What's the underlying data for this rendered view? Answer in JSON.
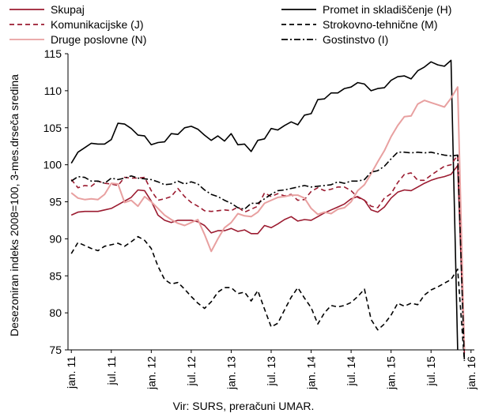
{
  "chart_data": {
    "type": "line",
    "ylabel": "Desezoniran indeks 2008=100, 3-mes.drseča sredina",
    "xlabel": "",
    "ylim": [
      75,
      115
    ],
    "yticks": [
      75,
      80,
      85,
      90,
      95,
      100,
      105,
      110,
      115
    ],
    "grid": false,
    "legend_position": "top",
    "source": "Vir:  SURS, preračuni UMAR.",
    "x": [
      "2011-01",
      "2011-02",
      "2011-03",
      "2011-04",
      "2011-05",
      "2011-06",
      "2011-07",
      "2011-08",
      "2011-09",
      "2011-10",
      "2011-11",
      "2011-12",
      "2012-01",
      "2012-02",
      "2012-03",
      "2012-04",
      "2012-05",
      "2012-06",
      "2012-07",
      "2012-08",
      "2012-09",
      "2012-10",
      "2012-11",
      "2012-12",
      "2013-01",
      "2013-02",
      "2013-03",
      "2013-04",
      "2013-05",
      "2013-06",
      "2013-07",
      "2013-08",
      "2013-09",
      "2013-10",
      "2013-11",
      "2013-12",
      "2014-01",
      "2014-02",
      "2014-03",
      "2014-04",
      "2014-05",
      "2014-06",
      "2014-07",
      "2014-08",
      "2014-09",
      "2014-10",
      "2014-11",
      "2014-12",
      "2015-01",
      "2015-02",
      "2015-03",
      "2015-04",
      "2015-05",
      "2015-06",
      "2015-07",
      "2015-08",
      "2015-09",
      "2015-10",
      "2015-11",
      "2015-12",
      "2016-01"
    ],
    "xtick_labels": [
      {
        "x": "2011-01",
        "label": "jan. 11"
      },
      {
        "x": "2011-07",
        "label": "jul. 11"
      },
      {
        "x": "2012-01",
        "label": "jan. 12"
      },
      {
        "x": "2012-07",
        "label": "jul. 12"
      },
      {
        "x": "2013-01",
        "label": "jan. 13"
      },
      {
        "x": "2013-07",
        "label": "jul. 13"
      },
      {
        "x": "2014-01",
        "label": "jan. 14"
      },
      {
        "x": "2014-07",
        "label": "jul. 14"
      },
      {
        "x": "2015-01",
        "label": "jan. 15"
      },
      {
        "x": "2015-07",
        "label": "jul. 15"
      },
      {
        "x": "2016-01",
        "label": "jan. 16"
      }
    ],
    "legend": [
      {
        "series": "skupaj",
        "label": "Skupaj"
      },
      {
        "series": "promet",
        "label": "Promet in skladiščenje (H)"
      },
      {
        "series": "komunikacijske",
        "label": "Komunikacijske (J)"
      },
      {
        "series": "strokovno",
        "label": "Strokovno-tehnične (M)"
      },
      {
        "series": "druge",
        "label": "Druge poslovne (N)"
      },
      {
        "series": "gostinstvo",
        "label": "Gostinstvo (I)"
      }
    ],
    "series": [
      {
        "id": "skupaj",
        "name": "Skupaj",
        "color": "#9b1b30",
        "dash": "solid",
        "values": [
          93.2,
          93.6,
          93.7,
          93.7,
          93.7,
          93.9,
          94.1,
          94.6,
          95.1,
          95.6,
          96.6,
          96.5,
          95.1,
          93.2,
          92.5,
          92.2,
          92.5,
          92.5,
          92.5,
          92.3,
          91.8,
          90.8,
          91.1,
          91.1,
          91.4,
          91.0,
          91.2,
          90.7,
          90.7,
          91.8,
          91.5,
          92.0,
          92.6,
          93.0,
          92.4,
          92.6,
          92.5,
          93.0,
          93.5,
          93.9,
          94.3,
          94.7,
          95.4,
          95.7,
          95.2,
          93.9,
          93.6,
          94.3,
          95.5,
          96.3,
          96.6,
          96.5,
          97.0,
          97.5,
          97.9,
          98.2,
          98.4,
          98.7,
          99.9,
          74.5,
          null
        ]
      },
      {
        "id": "promet",
        "name": "Promet in skladiščenje (H)",
        "color": "#000000",
        "dash": "solid",
        "values": [
          100.2,
          101.7,
          102.3,
          102.9,
          102.8,
          102.8,
          103.4,
          105.6,
          105.5,
          104.9,
          104.0,
          103.9,
          102.7,
          103.0,
          103.1,
          104.2,
          104.1,
          105.0,
          105.2,
          104.8,
          104.0,
          103.3,
          103.9,
          103.2,
          104.2,
          102.7,
          102.8,
          101.8,
          103.3,
          103.5,
          104.9,
          104.7,
          105.3,
          105.8,
          105.4,
          106.7,
          106.9,
          108.8,
          108.9,
          109.7,
          109.7,
          110.3,
          110.5,
          111.1,
          110.9,
          110.0,
          110.3,
          110.4,
          111.4,
          111.9,
          112.0,
          111.6,
          112.7,
          113.2,
          113.9,
          113.5,
          113.3,
          114.1,
          75.0,
          null,
          null
        ]
      },
      {
        "id": "komunikacijske",
        "name": "Komunikacijske (J)",
        "color": "#9b1b30",
        "dash": "dashed",
        "values": [
          98.0,
          96.9,
          97.2,
          97.1,
          97.8,
          97.5,
          97.4,
          97.2,
          98.3,
          98.2,
          98.2,
          98.3,
          96.5,
          95.2,
          95.4,
          95.7,
          96.8,
          95.7,
          94.9,
          94.4,
          93.8,
          93.7,
          93.8,
          93.9,
          93.8,
          94.3,
          93.6,
          94.0,
          94.4,
          96.2,
          95.7,
          96.1,
          95.8,
          96.0,
          95.2,
          95.3,
          96.4,
          96.9,
          96.5,
          96.7,
          97.0,
          97.0,
          96.5,
          95.6,
          95.2,
          94.4,
          94.2,
          95.5,
          96.1,
          97.6,
          98.7,
          98.9,
          97.9,
          97.9,
          98.6,
          99.2,
          99.8,
          100.0,
          101.3,
          75.0,
          null
        ]
      },
      {
        "id": "strokovno",
        "name": "Strokovno-tehnične (M)",
        "color": "#000000",
        "dash": "dashed",
        "values": [
          88.0,
          89.5,
          89.1,
          88.7,
          88.4,
          89.0,
          89.2,
          89.4,
          89.0,
          89.6,
          90.3,
          89.8,
          88.7,
          86.3,
          84.5,
          83.9,
          84.1,
          83.2,
          82.2,
          81.3,
          80.6,
          81.5,
          82.8,
          83.4,
          83.4,
          82.6,
          82.8,
          81.6,
          83.0,
          80.5,
          78.1,
          78.6,
          80.4,
          82.1,
          83.4,
          82.0,
          80.7,
          78.5,
          80.0,
          81.0,
          80.8,
          81.0,
          81.4,
          82.2,
          83.2,
          79.1,
          77.7,
          78.5,
          79.7,
          81.3,
          80.9,
          81.3,
          81.1,
          82.4,
          83.1,
          83.5,
          84.0,
          84.5,
          85.9,
          73.5,
          null
        ]
      },
      {
        "id": "druge",
        "name": "Druge poslovne (N)",
        "color": "#e8a0a0",
        "dash": "solid",
        "values": [
          96.2,
          95.5,
          95.3,
          95.4,
          95.3,
          96.0,
          97.5,
          97.4,
          94.9,
          95.2,
          94.4,
          95.7,
          95.0,
          94.1,
          93.2,
          92.6,
          92.1,
          91.8,
          92.2,
          92.6,
          90.6,
          88.3,
          90.0,
          91.5,
          92.2,
          93.4,
          93.1,
          93.0,
          93.6,
          94.8,
          95.2,
          95.6,
          95.7,
          95.9,
          95.9,
          95.5,
          94.1,
          93.3,
          93.6,
          93.4,
          94.0,
          94.2,
          95.0,
          96.5,
          97.3,
          98.8,
          100.4,
          101.9,
          103.8,
          105.3,
          106.5,
          106.6,
          108.2,
          108.7,
          108.4,
          108.1,
          107.8,
          109.0,
          110.5,
          75.0,
          null
        ]
      },
      {
        "id": "gostinstvo",
        "name": "Gostinstvo (I)",
        "color": "#000000",
        "dash": "dashdot",
        "values": [
          97.8,
          98.4,
          98.3,
          97.8,
          97.8,
          97.5,
          98.2,
          98.0,
          98.2,
          98.5,
          98.2,
          98.1,
          98.0,
          97.7,
          97.3,
          97.4,
          97.8,
          97.4,
          97.7,
          97.4,
          96.6,
          96.0,
          95.7,
          95.2,
          94.8,
          94.2,
          94.0,
          94.8,
          94.8,
          95.4,
          96.0,
          96.5,
          96.6,
          96.8,
          97.0,
          97.2,
          97.0,
          97.1,
          97.2,
          97.3,
          97.7,
          97.5,
          97.8,
          97.8,
          98.0,
          99.0,
          99.2,
          99.8,
          100.8,
          101.7,
          101.7,
          101.6,
          101.7,
          101.6,
          101.7,
          101.5,
          101.3,
          101.2,
          101.3,
          73.5,
          null
        ]
      }
    ]
  }
}
